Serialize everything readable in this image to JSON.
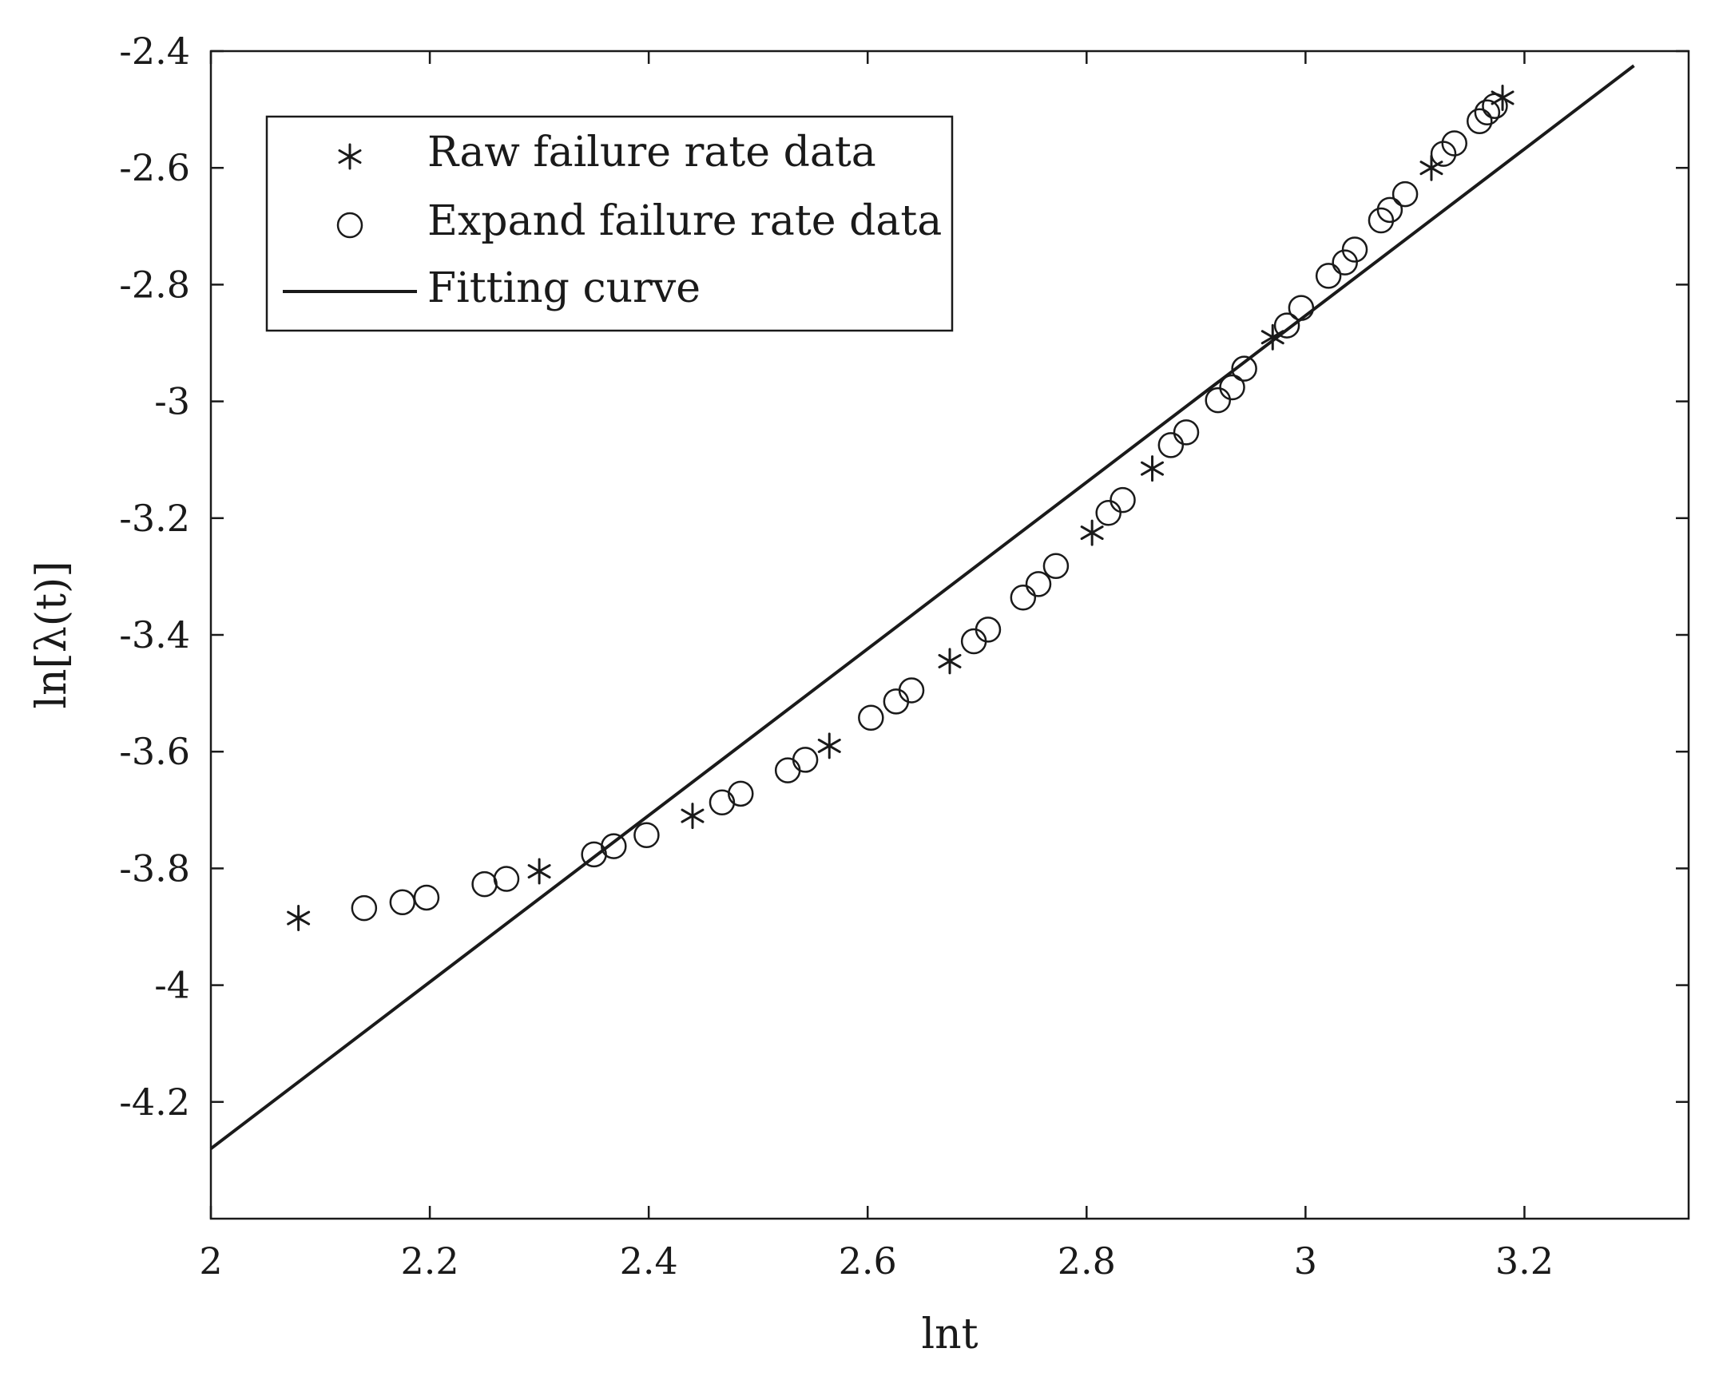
{
  "chart_data": {
    "type": "scatter",
    "xlabel": "lnt",
    "ylabel": "ln[λ(t)]",
    "xlim": [
      2,
      3.35
    ],
    "ylim": [
      -4.4,
      -2.4
    ],
    "xticks": [
      2,
      2.2,
      2.4,
      2.6,
      2.8,
      3,
      3.2
    ],
    "xtick_labels": [
      "2",
      "2.2",
      "2.4",
      "2.6",
      "2.8",
      "3",
      "3.2"
    ],
    "yticks": [
      -4.2,
      -4,
      -3.8,
      -3.6,
      -3.4,
      -3.2,
      -3,
      -2.8,
      -2.6,
      -2.4
    ],
    "ytick_labels": [
      "-4.2",
      "-4",
      "-3.8",
      "-3.6",
      "-3.4",
      "-3.2",
      "-3",
      "-2.8",
      "-2.6",
      "-2.4"
    ],
    "grid": false,
    "legend_position": "top-left",
    "series": [
      {
        "name": "Raw failure rate data",
        "marker": "asterisk",
        "x": [
          2.08,
          2.3,
          2.44,
          2.565,
          2.675,
          2.805,
          2.86,
          2.97,
          3.115,
          3.18
        ],
        "y": [
          -3.885,
          -3.805,
          -3.71,
          -3.59,
          -3.445,
          -3.225,
          -3.115,
          -2.89,
          -2.6,
          -2.48
        ]
      },
      {
        "name": "Expand failure rate data",
        "marker": "circle",
        "x": [
          2.14,
          2.175,
          2.197,
          2.25,
          2.27,
          2.35,
          2.368,
          2.398,
          2.467,
          2.484,
          2.527,
          2.543,
          2.603,
          2.626,
          2.64,
          2.742,
          2.756,
          2.772,
          2.697,
          2.71,
          2.82,
          2.833,
          2.877,
          2.891,
          2.92,
          2.933,
          2.944,
          2.983,
          2.996,
          3.021,
          3.036,
          3.045,
          3.069,
          3.077,
          3.091,
          3.126,
          3.136,
          3.159,
          3.166,
          3.173
        ],
        "y": [
          -3.868,
          -3.858,
          -3.85,
          -3.827,
          -3.818,
          -3.776,
          -3.762,
          -3.743,
          -3.687,
          -3.672,
          -3.632,
          -3.614,
          -3.542,
          -3.514,
          -3.495,
          -3.336,
          -3.313,
          -3.282,
          -3.411,
          -3.391,
          -3.191,
          -3.169,
          -3.075,
          -3.053,
          -2.998,
          -2.976,
          -2.944,
          -2.87,
          -2.84,
          -2.785,
          -2.762,
          -2.74,
          -2.69,
          -2.672,
          -2.645,
          -2.576,
          -2.558,
          -2.52,
          -2.505,
          -2.494
        ]
      },
      {
        "name": "Fitting curve",
        "marker": "line",
        "x": [
          2,
          3.3
        ],
        "y": [
          -4.28,
          -2.425
        ]
      }
    ]
  },
  "colors": {
    "ink": "#1a1a1a",
    "background": "#ffffff"
  }
}
